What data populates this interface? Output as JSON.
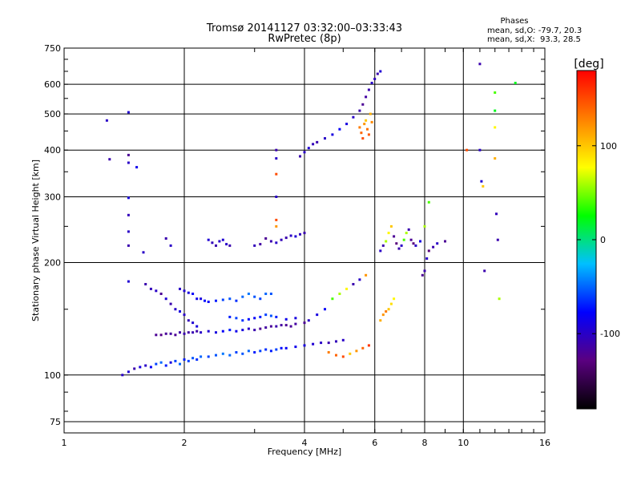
{
  "chart_data": {
    "type": "scatter",
    "title": "Tromsø 20141127 03:32:00–03:33:43",
    "subtitle": "RwPretec (8p)",
    "xlabel": "Frequency [MHz]",
    "ylabel": "Stationary phase Virtual Height [km]",
    "x_scale": "log",
    "y_scale": "log",
    "xlim": [
      1,
      16
    ],
    "ylim": [
      70,
      750
    ],
    "x_ticks": [
      1,
      2,
      4,
      6,
      8,
      10,
      16
    ],
    "x_tick_labels": [
      "1",
      "2",
      "4",
      "6",
      "8",
      "10",
      "16"
    ],
    "y_ticks": [
      75,
      100,
      200,
      300,
      400,
      500,
      600,
      750
    ],
    "y_tick_labels": [
      "75",
      "100",
      "200",
      "300",
      "400",
      "500",
      "600",
      "750"
    ],
    "grid": true,
    "stats": {
      "heading": "Phases",
      "o_line": "mean, sd,O: -79.7, 20.3",
      "x_line": "mean, sd,X:  93.3, 28.5"
    },
    "colorbar": {
      "label": "[deg]",
      "range": [
        -180,
        180
      ],
      "ticks": [
        100,
        0,
        -100
      ],
      "tick_labels": [
        "100",
        "0",
        "-100"
      ],
      "colors": [
        "#000000",
        "#5a0080",
        "#0000ff",
        "#00c0ff",
        "#00ff00",
        "#ffff00",
        "#ff8000",
        "#ff0000"
      ]
    },
    "series": [
      {
        "x": [
          1.28,
          1.3,
          1.45,
          1.45,
          1.45,
          1.45,
          1.45,
          1.45,
          1.45,
          1.45,
          1.52,
          1.58
        ],
        "y": [
          480,
          378,
          505,
          388,
          370,
          298,
          268,
          242,
          222,
          178,
          360,
          213
        ],
        "phase": [
          -100,
          -110,
          -95,
          -120,
          -100,
          -90,
          -105,
          -100,
          -110,
          -95,
          -85,
          -100
        ]
      },
      {
        "x": [
          1.4,
          1.45,
          1.5,
          1.55,
          1.6,
          1.65,
          1.7,
          1.75,
          1.8,
          1.85,
          1.9,
          1.95,
          2.0,
          2.05,
          2.1,
          2.15,
          2.2,
          2.3,
          2.4,
          2.5,
          2.6,
          2.7,
          2.8,
          2.9,
          3.0,
          3.1,
          3.2,
          3.3,
          3.4,
          3.5,
          3.6,
          3.8,
          4.0,
          4.2,
          4.4,
          4.6,
          4.8,
          5.0
        ],
        "y": [
          100,
          102,
          104,
          105,
          106,
          105,
          107,
          108,
          106,
          108,
          109,
          107,
          110,
          109,
          111,
          110,
          112,
          112,
          113,
          114,
          113,
          115,
          114,
          116,
          115,
          116,
          117,
          116,
          117,
          118,
          118,
          119,
          120,
          121,
          122,
          122,
          123,
          124
        ],
        "phase": [
          -100,
          -95,
          -110,
          -90,
          -100,
          -80,
          -60,
          -50,
          -70,
          -90,
          -60,
          -50,
          -70,
          -60,
          -55,
          -65,
          -50,
          -60,
          -55,
          -45,
          -50,
          -60,
          -55,
          -50,
          -70,
          -60,
          -65,
          -70,
          -60,
          -75,
          -80,
          -85,
          -90,
          -95,
          -100,
          -110,
          -105,
          -100
        ]
      },
      {
        "x": [
          1.7,
          1.75,
          1.8,
          1.85,
          1.9,
          1.95,
          2.0,
          2.05,
          2.1,
          2.15,
          2.2,
          2.3,
          2.4,
          2.5,
          2.6,
          2.7,
          2.8,
          2.9,
          3.0,
          3.1,
          3.2,
          3.3,
          3.4,
          3.5,
          3.6,
          3.7,
          3.8,
          4.0
        ],
        "y": [
          128,
          128,
          129,
          129,
          128,
          130,
          129,
          130,
          130,
          131,
          130,
          131,
          130,
          131,
          132,
          131,
          132,
          133,
          132,
          133,
          134,
          135,
          135,
          136,
          136,
          135,
          137,
          138
        ],
        "phase": [
          -120,
          -125,
          -118,
          -115,
          -120,
          -112,
          -110,
          -115,
          -108,
          -112,
          -100,
          -95,
          -90,
          -80,
          -70,
          -85,
          -90,
          -100,
          -110,
          -120,
          -115,
          -118,
          -110,
          -115,
          -120,
          -118,
          -115,
          -120
        ]
      },
      {
        "x": [
          1.6,
          1.65,
          1.7,
          1.75,
          1.8,
          1.85,
          1.9,
          1.95,
          2.0,
          2.05,
          2.1,
          2.15
        ],
        "y": [
          175,
          170,
          168,
          165,
          160,
          155,
          150,
          148,
          145,
          140,
          138,
          135
        ],
        "phase": [
          -110,
          -105,
          -100,
          -120,
          -95,
          -110,
          -100,
          -90,
          -100,
          -105,
          -95,
          -90
        ]
      },
      {
        "x": [
          1.95,
          2.0,
          2.05,
          2.1,
          2.15,
          2.2,
          2.25,
          2.3,
          2.4,
          2.5,
          2.6,
          2.7,
          2.8,
          2.9,
          3.0,
          3.1,
          3.2,
          3.3
        ],
        "y": [
          170,
          168,
          166,
          165,
          160,
          160,
          158,
          157,
          158,
          159,
          160,
          158,
          162,
          165,
          162,
          160,
          165,
          165
        ],
        "phase": [
          -100,
          -95,
          -90,
          -80,
          -85,
          -90,
          -75,
          -80,
          -70,
          -60,
          -55,
          -65,
          -50,
          -45,
          -55,
          -60,
          -50,
          -55
        ]
      },
      {
        "x": [
          2.6,
          2.7,
          2.8,
          2.9,
          3.0,
          3.1,
          3.2,
          3.3,
          3.4,
          3.6,
          3.8
        ],
        "y": [
          143,
          142,
          140,
          141,
          142,
          143,
          145,
          144,
          143,
          141,
          142
        ],
        "phase": [
          -70,
          -60,
          -65,
          -75,
          -80,
          -70,
          -60,
          -55,
          -70,
          -85,
          -90
        ]
      },
      {
        "x": [
          1.8,
          1.85,
          2.3,
          2.35,
          2.4,
          2.45,
          2.5,
          2.55,
          2.6,
          3.0,
          3.1,
          3.2,
          3.3,
          3.4,
          3.5,
          3.6,
          3.7,
          3.8,
          3.9,
          4.0
        ],
        "y": [
          232,
          222,
          230,
          226,
          222,
          228,
          230,
          224,
          222,
          222,
          224,
          232,
          228,
          226,
          230,
          233,
          236,
          235,
          238,
          240
        ],
        "phase": [
          -110,
          -100,
          -95,
          -105,
          -110,
          -100,
          -95,
          -100,
          -110,
          -105,
          -115,
          -120,
          -110,
          -100,
          -105,
          -110,
          -100,
          -95,
          -105,
          -110
        ]
      },
      {
        "x": [
          3.4,
          3.4,
          3.4,
          3.4,
          3.4,
          3.4
        ],
        "y": [
          400,
          380,
          345,
          300,
          260,
          250
        ],
        "phase": [
          -110,
          -100,
          150,
          -100,
          150,
          120
        ]
      },
      {
        "x": [
          3.9,
          4.0,
          4.1,
          4.2,
          4.3,
          4.5,
          4.7,
          4.9,
          5.1,
          5.3,
          5.5,
          5.6,
          5.7,
          5.8,
          5.9,
          6.0,
          6.1,
          6.2
        ],
        "y": [
          385,
          395,
          405,
          415,
          420,
          430,
          440,
          455,
          470,
          490,
          510,
          530,
          555,
          580,
          605,
          620,
          640,
          650
        ],
        "phase": [
          -110,
          -100,
          -95,
          -105,
          -110,
          -100,
          -90,
          -80,
          -90,
          -100,
          -110,
          -120,
          -115,
          -110,
          -100,
          -105,
          -110,
          -95
        ]
      },
      {
        "x": [
          5.5,
          5.55,
          5.6,
          5.65,
          5.7,
          5.75,
          5.8,
          5.85,
          5.9
        ],
        "y": [
          460,
          445,
          430,
          470,
          480,
          455,
          440,
          500,
          475
        ],
        "phase": [
          130,
          140,
          150,
          120,
          100,
          135,
          145,
          110,
          125
        ]
      },
      {
        "x": [
          4.1,
          4.3,
          4.5,
          4.7,
          4.9,
          5.1,
          5.3,
          5.5,
          5.7
        ],
        "y": [
          140,
          145,
          150,
          160,
          165,
          170,
          175,
          180,
          185
        ],
        "phase": [
          -100,
          -90,
          -80,
          40,
          60,
          80,
          -110,
          -100,
          120
        ]
      },
      {
        "x": [
          4.6,
          4.8,
          5.0,
          5.2,
          5.4,
          5.6,
          5.8
        ],
        "y": [
          115,
          113,
          112,
          114,
          116,
          118,
          120
        ],
        "phase": [
          130,
          140,
          150,
          100,
          120,
          140,
          160
        ]
      },
      {
        "x": [
          6.2,
          6.3,
          6.4,
          6.5,
          6.6,
          6.7,
          6.8,
          6.9,
          7.0,
          7.1,
          7.2,
          7.3,
          7.4,
          7.5,
          7.6,
          7.8,
          8.0,
          8.2
        ],
        "y": [
          215,
          222,
          228,
          240,
          250,
          235,
          225,
          218,
          222,
          230,
          240,
          245,
          230,
          225,
          222,
          228,
          250,
          290
        ],
        "phase": [
          -100,
          -110,
          60,
          80,
          100,
          -120,
          -130,
          -110,
          -100,
          40,
          60,
          -110,
          -120,
          -130,
          -100,
          -90,
          60,
          40
        ]
      },
      {
        "x": [
          6.2,
          6.3,
          6.4,
          6.5,
          6.6,
          6.7
        ],
        "y": [
          140,
          145,
          148,
          150,
          155,
          160
        ],
        "phase": [
          110,
          120,
          130,
          100,
          90,
          80
        ]
      },
      {
        "x": [
          7.9,
          8.0,
          8.1,
          8.2,
          8.4,
          8.6,
          9.0,
          10.2
        ],
        "y": [
          185,
          190,
          205,
          215,
          220,
          225,
          228,
          400
        ],
        "phase": [
          -120,
          -110,
          -100,
          -130,
          -110,
          -100,
          -120,
          150
        ]
      },
      {
        "x": [
          11.0,
          11.0,
          11.1,
          11.2,
          11.3,
          12.0,
          12.0,
          12.0,
          12.0,
          12.1,
          12.2,
          12.3,
          13.5
        ],
        "y": [
          680,
          400,
          330,
          320,
          190,
          570,
          510,
          460,
          380,
          270,
          230,
          160,
          605
        ],
        "phase": [
          -110,
          -100,
          -95,
          100,
          -110,
          40,
          20,
          80,
          110,
          -105,
          -110,
          60,
          20
        ]
      }
    ]
  }
}
